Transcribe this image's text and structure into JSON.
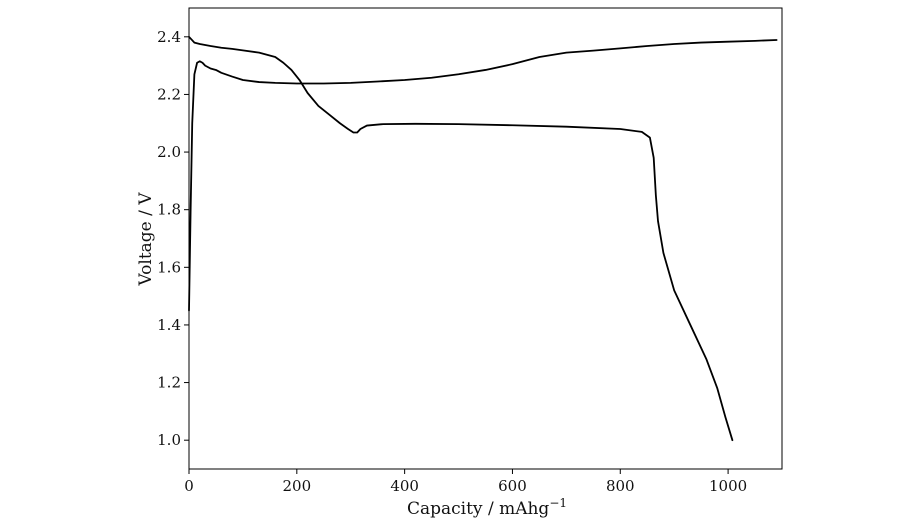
{
  "chart_data": {
    "type": "line",
    "title": "",
    "xlabel": "Capacity / mAhg",
    "xlabel_superscript": "−1",
    "ylabel": "Voltage / V",
    "xlim": [
      0,
      1100
    ],
    "ylim": [
      0.9,
      2.5
    ],
    "xticks": [
      0,
      200,
      400,
      600,
      800,
      1000
    ],
    "yticks": [
      1.0,
      1.2,
      1.4,
      1.6,
      1.8,
      2.0,
      2.2,
      2.4
    ],
    "xtick_labels": [
      "0",
      "200",
      "400",
      "600",
      "800",
      "1000"
    ],
    "ytick_labels": [
      "1.0",
      "1.2",
      "1.4",
      "1.6",
      "1.8",
      "2.0",
      "2.2",
      "2.4"
    ],
    "grid": false,
    "legend": "none",
    "line_color": "#000000",
    "series": [
      {
        "x": [
          0,
          5,
          10,
          20,
          40,
          60,
          80,
          100,
          130,
          160,
          175,
          190,
          205,
          220,
          240,
          260,
          280,
          295,
          305,
          312,
          318,
          330,
          360,
          420,
          500,
          600,
          700,
          800,
          840,
          855,
          862,
          866,
          870,
          880,
          900,
          930,
          960,
          980,
          995,
          1008
        ],
        "y": [
          2.4,
          2.39,
          2.38,
          2.375,
          2.368,
          2.362,
          2.358,
          2.353,
          2.345,
          2.33,
          2.31,
          2.285,
          2.25,
          2.205,
          2.16,
          2.13,
          2.1,
          2.08,
          2.068,
          2.068,
          2.08,
          2.092,
          2.097,
          2.098,
          2.097,
          2.093,
          2.088,
          2.08,
          2.07,
          2.05,
          1.98,
          1.85,
          1.76,
          1.65,
          1.52,
          1.4,
          1.28,
          1.18,
          1.08,
          1.0
        ]
      },
      {
        "x": [
          0,
          3,
          6,
          10,
          15,
          20,
          25,
          30,
          40,
          50,
          60,
          80,
          100,
          130,
          160,
          200,
          250,
          300,
          350,
          400,
          450,
          500,
          550,
          600,
          650,
          700,
          750,
          800,
          850,
          900,
          950,
          1000,
          1050,
          1090
        ],
        "y": [
          1.45,
          1.8,
          2.1,
          2.27,
          2.31,
          2.315,
          2.31,
          2.3,
          2.29,
          2.285,
          2.275,
          2.262,
          2.25,
          2.243,
          2.24,
          2.238,
          2.238,
          2.24,
          2.245,
          2.25,
          2.258,
          2.27,
          2.285,
          2.305,
          2.33,
          2.345,
          2.352,
          2.36,
          2.368,
          2.375,
          2.38,
          2.383,
          2.386,
          2.389
        ]
      }
    ]
  }
}
